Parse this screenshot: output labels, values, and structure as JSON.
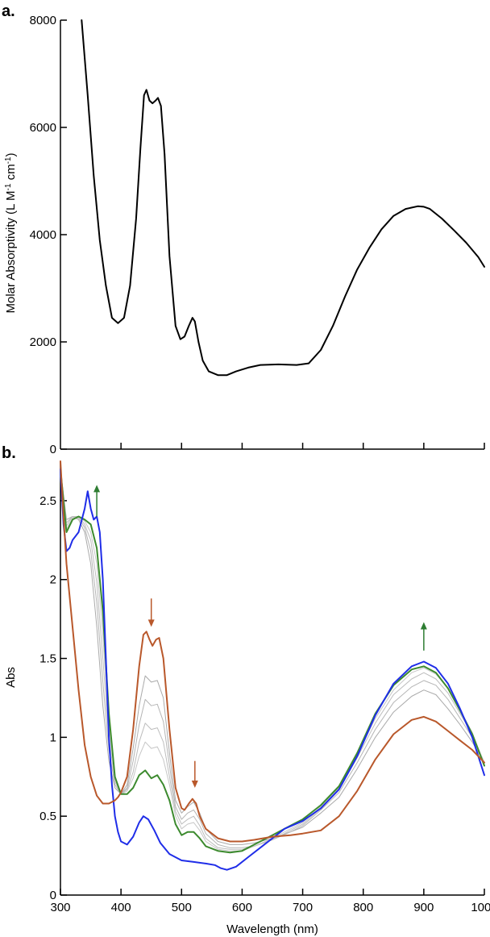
{
  "chart_data": [
    {
      "type": "line",
      "panel_label": "a.",
      "xlabel": "",
      "ylabel": "Molar Absorptivity (L M",
      "ylabel_sup1": "-1",
      "ylabel_mid": " cm",
      "ylabel_sup2": "-1",
      "ylabel_end": ")",
      "xlim": [
        300,
        1000
      ],
      "ylim": [
        0,
        8000
      ],
      "xticks": [
        400,
        500,
        600,
        700,
        800,
        900,
        1000
      ],
      "yticks": [
        0,
        2000,
        4000,
        6000,
        8000
      ],
      "ytick_labels": [
        "0",
        "2000",
        "4000",
        "6000",
        "8000"
      ],
      "grid": false,
      "series": [
        {
          "color": "#000000",
          "x": [
            335,
            345,
            355,
            365,
            375,
            385,
            395,
            405,
            415,
            425,
            432,
            438,
            442,
            447,
            452,
            457,
            461,
            466,
            472,
            480,
            490,
            498,
            505,
            512,
            518,
            522,
            528,
            535,
            545,
            560,
            575,
            590,
            610,
            630,
            660,
            690,
            710,
            730,
            750,
            770,
            790,
            810,
            830,
            850,
            870,
            890,
            900,
            910,
            930,
            950,
            970,
            990,
            1000
          ],
          "y": [
            8000,
            6600,
            5100,
            3900,
            3050,
            2450,
            2350,
            2450,
            3050,
            4300,
            5600,
            6600,
            6700,
            6500,
            6450,
            6500,
            6550,
            6400,
            5500,
            3600,
            2300,
            2050,
            2100,
            2300,
            2450,
            2380,
            2000,
            1650,
            1450,
            1380,
            1380,
            1450,
            1520,
            1570,
            1580,
            1570,
            1600,
            1850,
            2300,
            2850,
            3350,
            3750,
            4100,
            4350,
            4480,
            4530,
            4520,
            4480,
            4300,
            4080,
            3850,
            3580,
            3400
          ]
        }
      ]
    },
    {
      "type": "line",
      "panel_label": "b.",
      "xlabel": "Wavelength (nm)",
      "ylabel": "Abs",
      "xlim": [
        300,
        1000
      ],
      "ylim": [
        0,
        2.75
      ],
      "xticks": [
        300,
        400,
        500,
        600,
        700,
        800,
        900,
        1000
      ],
      "xtick_labels": [
        "300",
        "400",
        "500",
        "600",
        "700",
        "800",
        "900",
        "1000"
      ],
      "yticks": [
        0,
        0.5,
        1,
        1.5,
        2,
        2.5
      ],
      "ytick_labels": [
        "0",
        "0.5",
        "1",
        "1.5",
        "2",
        "2.5"
      ],
      "grid": false,
      "series": [
        {
          "color": "#aaaaaa",
          "width": 1,
          "x": [
            300,
            310,
            320,
            330,
            340,
            350,
            360,
            370,
            380,
            390,
            400,
            410,
            420,
            430,
            440,
            450,
            460,
            470,
            480,
            490,
            500,
            510,
            520,
            530,
            540,
            560,
            580,
            600,
            620,
            650,
            680,
            700,
            730,
            760,
            790,
            820,
            850,
            880,
            900,
            920,
            940,
            960,
            980,
            1000
          ],
          "y": [
            2.7,
            2.38,
            2.4,
            2.38,
            2.3,
            2.1,
            1.7,
            1.2,
            0.85,
            0.68,
            0.64,
            0.7,
            0.93,
            1.2,
            1.39,
            1.35,
            1.36,
            1.25,
            0.9,
            0.6,
            0.52,
            0.56,
            0.59,
            0.52,
            0.42,
            0.34,
            0.32,
            0.32,
            0.33,
            0.36,
            0.4,
            0.43,
            0.52,
            0.62,
            0.8,
            1.0,
            1.16,
            1.26,
            1.3,
            1.27,
            1.18,
            1.08,
            0.97,
            0.84
          ]
        },
        {
          "color": "#b5b5b5",
          "width": 1,
          "x": [
            300,
            310,
            320,
            330,
            340,
            350,
            360,
            370,
            380,
            390,
            400,
            410,
            420,
            430,
            440,
            450,
            460,
            470,
            480,
            490,
            500,
            510,
            520,
            530,
            540,
            560,
            580,
            600,
            620,
            650,
            680,
            700,
            730,
            760,
            790,
            820,
            850,
            880,
            900,
            920,
            940,
            960,
            980,
            1000
          ],
          "y": [
            2.7,
            2.36,
            2.4,
            2.39,
            2.33,
            2.18,
            1.85,
            1.35,
            0.92,
            0.7,
            0.64,
            0.68,
            0.85,
            1.08,
            1.24,
            1.2,
            1.21,
            1.1,
            0.82,
            0.56,
            0.48,
            0.52,
            0.54,
            0.48,
            0.39,
            0.32,
            0.3,
            0.3,
            0.31,
            0.35,
            0.4,
            0.44,
            0.54,
            0.65,
            0.84,
            1.05,
            1.22,
            1.32,
            1.36,
            1.33,
            1.24,
            1.12,
            1.0,
            0.84
          ]
        },
        {
          "color": "#bdbdbd",
          "width": 1,
          "x": [
            300,
            310,
            320,
            330,
            340,
            350,
            360,
            370,
            380,
            390,
            400,
            410,
            420,
            430,
            440,
            450,
            460,
            470,
            480,
            490,
            500,
            510,
            520,
            530,
            540,
            560,
            580,
            600,
            620,
            650,
            680,
            700,
            730,
            760,
            790,
            820,
            850,
            880,
            900,
            920,
            940,
            960,
            980,
            1000
          ],
          "y": [
            2.7,
            2.34,
            2.4,
            2.4,
            2.35,
            2.25,
            1.98,
            1.5,
            1.0,
            0.72,
            0.64,
            0.67,
            0.78,
            0.97,
            1.09,
            1.05,
            1.06,
            0.97,
            0.75,
            0.53,
            0.45,
            0.48,
            0.5,
            0.44,
            0.36,
            0.3,
            0.29,
            0.29,
            0.31,
            0.35,
            0.41,
            0.45,
            0.55,
            0.67,
            0.87,
            1.09,
            1.27,
            1.37,
            1.41,
            1.37,
            1.28,
            1.15,
            1.02,
            0.84
          ]
        },
        {
          "color": "#c6c6c6",
          "width": 1,
          "x": [
            300,
            310,
            320,
            330,
            340,
            350,
            360,
            370,
            380,
            390,
            400,
            410,
            420,
            430,
            440,
            450,
            460,
            470,
            480,
            490,
            500,
            510,
            520,
            530,
            540,
            560,
            580,
            600,
            620,
            650,
            680,
            700,
            730,
            760,
            790,
            820,
            850,
            880,
            900,
            920,
            940,
            960,
            980,
            1000
          ],
          "y": [
            2.7,
            2.32,
            2.39,
            2.4,
            2.37,
            2.3,
            2.1,
            1.65,
            1.08,
            0.74,
            0.64,
            0.66,
            0.74,
            0.88,
            0.97,
            0.93,
            0.94,
            0.86,
            0.7,
            0.5,
            0.42,
            0.45,
            0.46,
            0.41,
            0.34,
            0.29,
            0.28,
            0.28,
            0.31,
            0.36,
            0.42,
            0.46,
            0.56,
            0.68,
            0.89,
            1.12,
            1.3,
            1.41,
            1.44,
            1.4,
            1.31,
            1.17,
            1.03,
            0.83
          ]
        },
        {
          "color": "#3c8a2e",
          "width": 2,
          "x": [
            300,
            310,
            320,
            330,
            340,
            350,
            360,
            370,
            380,
            390,
            400,
            410,
            420,
            430,
            440,
            450,
            460,
            470,
            480,
            490,
            500,
            510,
            520,
            530,
            540,
            560,
            580,
            600,
            620,
            650,
            680,
            700,
            730,
            760,
            790,
            820,
            850,
            880,
            900,
            920,
            940,
            960,
            980,
            1000
          ],
          "y": [
            2.7,
            2.3,
            2.38,
            2.4,
            2.38,
            2.35,
            2.2,
            1.8,
            1.15,
            0.75,
            0.64,
            0.64,
            0.68,
            0.76,
            0.79,
            0.74,
            0.76,
            0.7,
            0.6,
            0.45,
            0.38,
            0.4,
            0.4,
            0.36,
            0.31,
            0.28,
            0.27,
            0.28,
            0.32,
            0.38,
            0.44,
            0.48,
            0.57,
            0.69,
            0.9,
            1.15,
            1.33,
            1.43,
            1.45,
            1.41,
            1.31,
            1.17,
            1.02,
            0.82
          ]
        },
        {
          "color": "#1f2de8",
          "width": 2,
          "x": [
            300,
            305,
            310,
            315,
            320,
            330,
            340,
            345,
            350,
            355,
            360,
            365,
            370,
            375,
            380,
            385,
            390,
            395,
            400,
            410,
            420,
            430,
            437,
            445,
            455,
            465,
            480,
            500,
            520,
            540,
            555,
            565,
            575,
            590,
            610,
            640,
            670,
            700,
            730,
            760,
            790,
            820,
            850,
            880,
            900,
            920,
            940,
            960,
            980,
            1000
          ],
          "y": [
            2.7,
            2.35,
            2.18,
            2.2,
            2.25,
            2.3,
            2.45,
            2.56,
            2.45,
            2.38,
            2.4,
            2.3,
            2.0,
            1.5,
            1.0,
            0.7,
            0.5,
            0.4,
            0.34,
            0.32,
            0.37,
            0.46,
            0.5,
            0.48,
            0.41,
            0.33,
            0.26,
            0.22,
            0.21,
            0.2,
            0.19,
            0.17,
            0.16,
            0.18,
            0.24,
            0.33,
            0.42,
            0.47,
            0.55,
            0.67,
            0.88,
            1.14,
            1.34,
            1.45,
            1.48,
            1.44,
            1.34,
            1.18,
            1.0,
            0.76
          ]
        },
        {
          "color": "#b9582b",
          "width": 2,
          "x": [
            300,
            305,
            310,
            320,
            330,
            340,
            350,
            360,
            370,
            380,
            390,
            395,
            400,
            410,
            420,
            430,
            437,
            442,
            447,
            452,
            458,
            463,
            470,
            480,
            490,
            500,
            505,
            512,
            518,
            524,
            530,
            540,
            560,
            580,
            600,
            620,
            650,
            680,
            700,
            730,
            760,
            790,
            820,
            850,
            880,
            900,
            920,
            940,
            960,
            980,
            1000
          ],
          "y": [
            2.75,
            2.4,
            2.1,
            1.7,
            1.3,
            0.95,
            0.75,
            0.63,
            0.58,
            0.58,
            0.6,
            0.62,
            0.65,
            0.75,
            1.05,
            1.45,
            1.65,
            1.67,
            1.62,
            1.58,
            1.62,
            1.63,
            1.5,
            1.05,
            0.68,
            0.55,
            0.54,
            0.58,
            0.61,
            0.58,
            0.5,
            0.42,
            0.36,
            0.34,
            0.34,
            0.35,
            0.37,
            0.38,
            0.39,
            0.41,
            0.5,
            0.66,
            0.86,
            1.02,
            1.11,
            1.13,
            1.1,
            1.04,
            0.98,
            0.92,
            0.84
          ]
        }
      ],
      "annotations": [
        {
          "type": "arrow-up",
          "color": "#2e7d32",
          "x": 360,
          "y_from": 2.4,
          "y_to": 2.6
        },
        {
          "type": "arrow-down",
          "color": "#b9582b",
          "x": 450,
          "y_from": 1.88,
          "y_to": 1.7
        },
        {
          "type": "arrow-down",
          "color": "#b9582b",
          "x": 522,
          "y_from": 0.85,
          "y_to": 0.68
        },
        {
          "type": "arrow-up",
          "color": "#2e7d32",
          "x": 900,
          "y_from": 1.55,
          "y_to": 1.73
        }
      ]
    }
  ]
}
